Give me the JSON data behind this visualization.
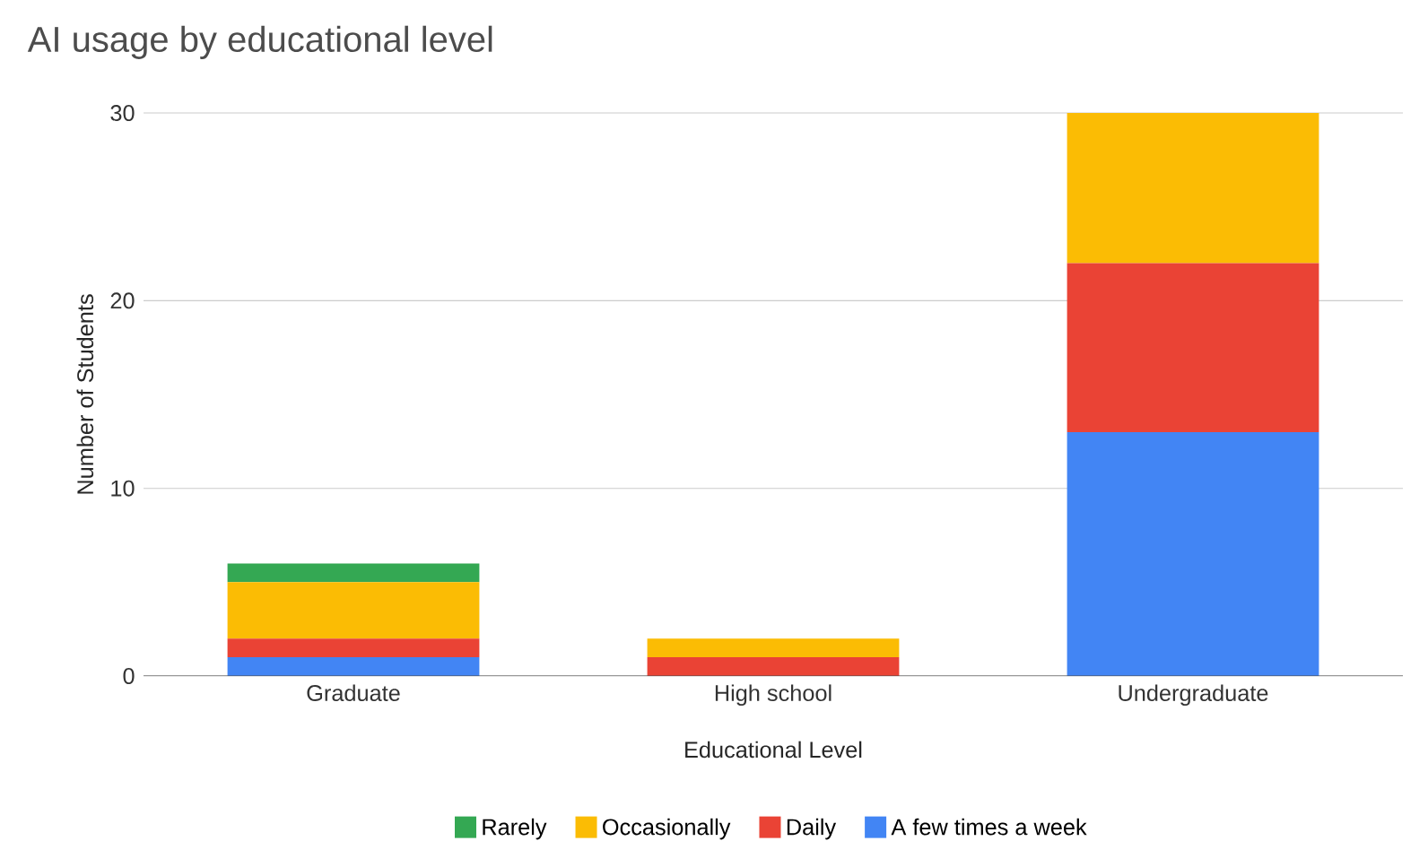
{
  "chart_data": {
    "type": "bar",
    "stacked": true,
    "title": "AI usage by educational level",
    "xlabel": "Educational Level",
    "ylabel": "Number of Students",
    "categories": [
      "Graduate",
      "High school",
      "Undergraduate"
    ],
    "series": [
      {
        "name": "A few times a week",
        "color": "#4285f4",
        "values": [
          1,
          0,
          13
        ]
      },
      {
        "name": "Daily",
        "color": "#ea4335",
        "values": [
          1,
          1,
          9
        ]
      },
      {
        "name": "Occasionally",
        "color": "#fbbc04",
        "values": [
          3,
          1,
          8
        ]
      },
      {
        "name": "Rarely",
        "color": "#34a853",
        "values": [
          1,
          0,
          0
        ]
      }
    ],
    "ylim": [
      0,
      30
    ],
    "yticks": [
      0,
      10,
      20,
      30
    ],
    "grid": "y",
    "legend": "bottom"
  }
}
